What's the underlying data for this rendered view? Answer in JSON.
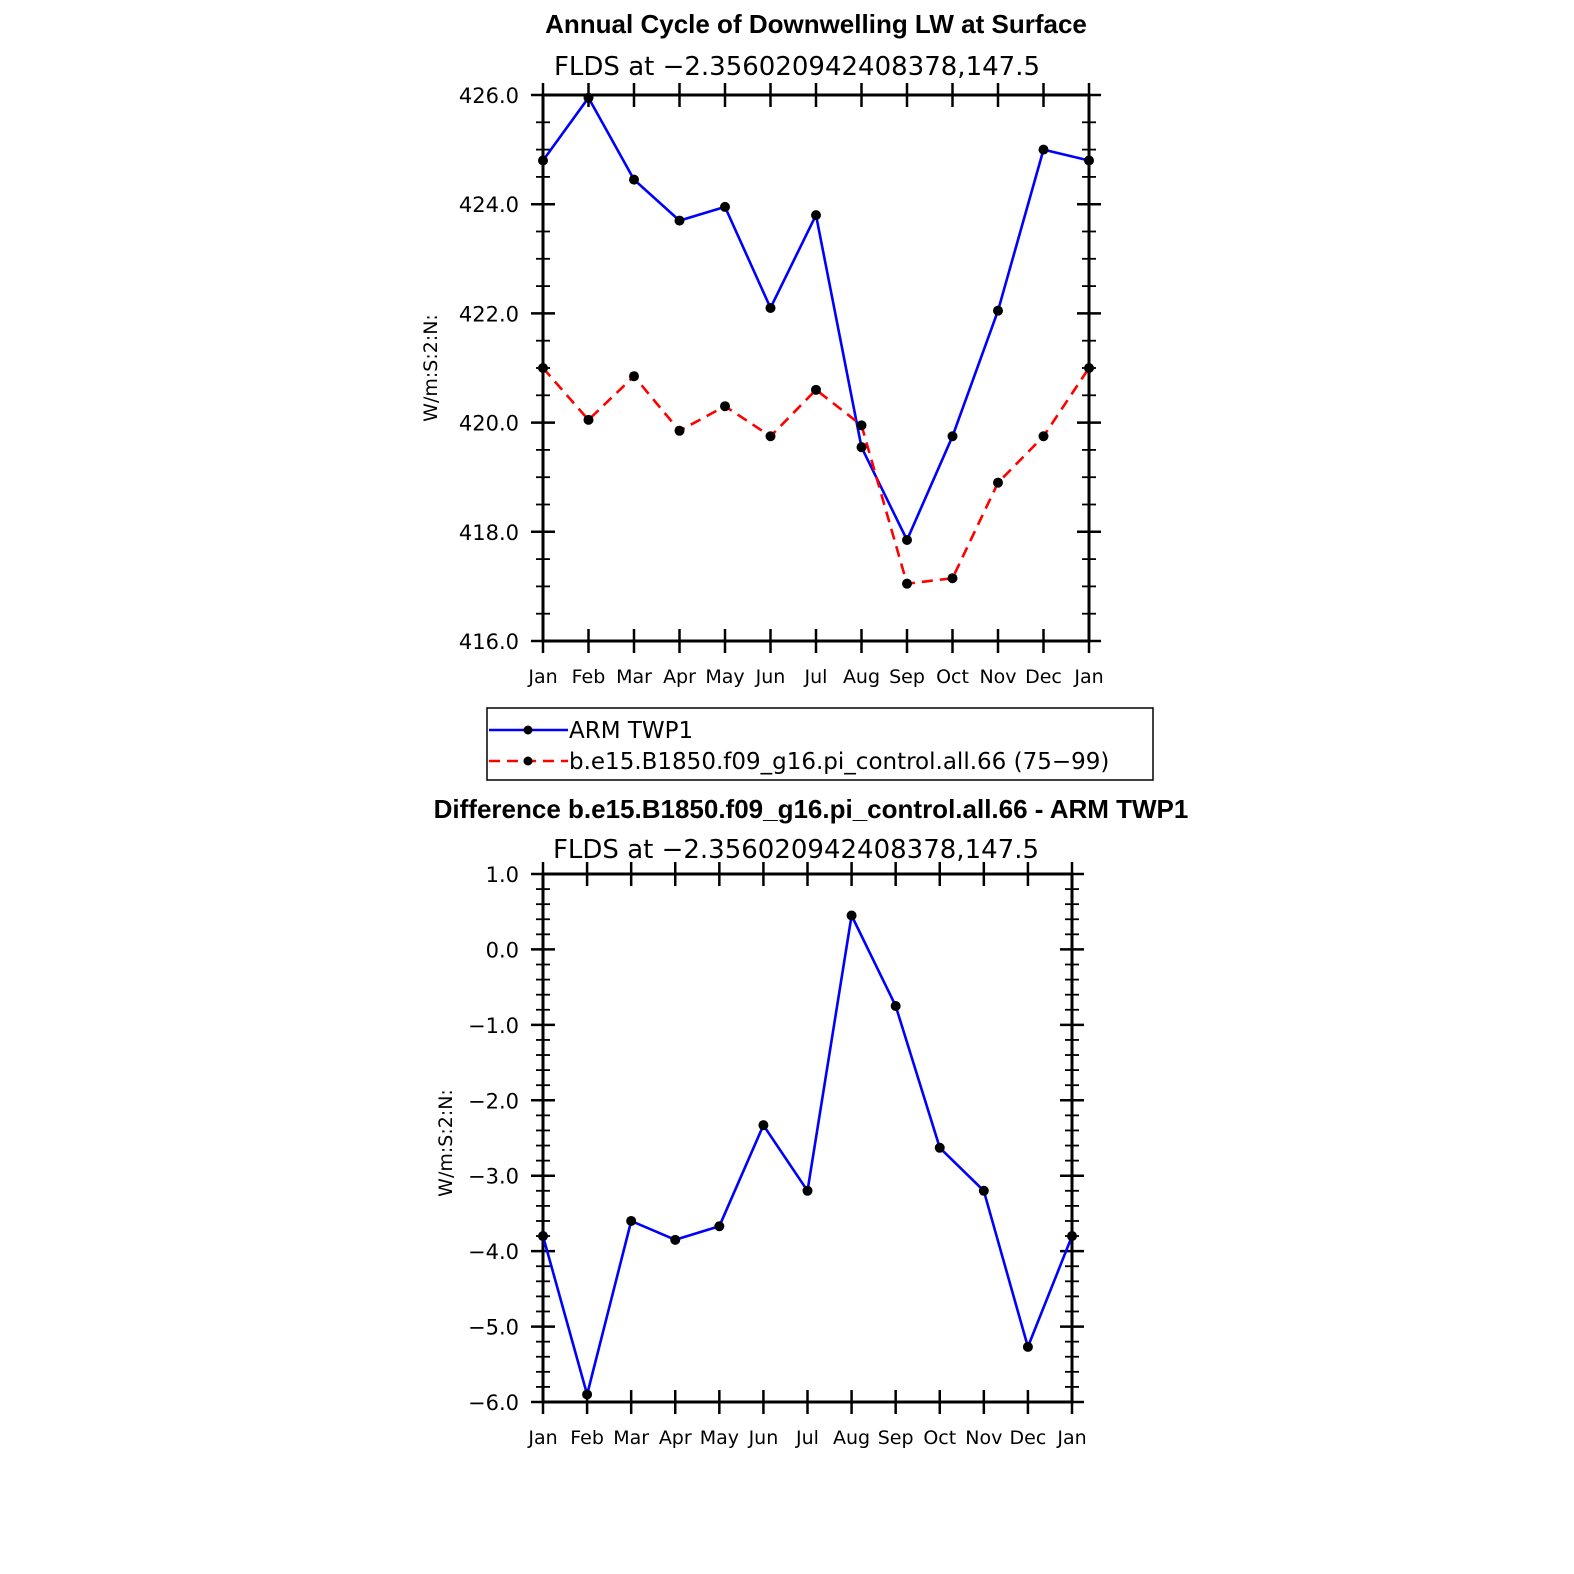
{
  "chart_data": [
    {
      "type": "line",
      "title": "Annual Cycle of Downwelling LW at Surface",
      "subtitle": "FLDS at −2.356020942408378,147.5",
      "ylabel": "W/m:S:2:N:",
      "xlabel": "",
      "categories": [
        "Jan",
        "Feb",
        "Mar",
        "Apr",
        "May",
        "Jun",
        "Jul",
        "Aug",
        "Sep",
        "Oct",
        "Nov",
        "Dec",
        "Jan"
      ],
      "ylim": [
        416.0,
        426.0
      ],
      "yticks": [
        "416.0",
        "418.0",
        "420.0",
        "422.0",
        "424.0",
        "426.0"
      ],
      "grid": false,
      "legend_position": "bottom",
      "series": [
        {
          "name": "ARM  TWP1",
          "color": "#0000ff",
          "dash": "solid",
          "values": [
            424.8,
            425.95,
            424.45,
            423.7,
            423.95,
            422.1,
            423.8,
            419.55,
            417.85,
            419.75,
            422.05,
            425.0,
            424.8
          ]
        },
        {
          "name": "b.e15.B1850.f09_g16.pi_control.all.66 (75−99)",
          "color": "#ff0000",
          "dash": "dashed",
          "values": [
            421.0,
            420.05,
            420.85,
            419.85,
            420.3,
            419.75,
            420.6,
            419.95,
            417.05,
            417.15,
            418.9,
            419.75,
            421.0
          ]
        }
      ]
    },
    {
      "type": "line",
      "title": "Difference b.e15.B1850.f09_g16.pi_control.all.66 - ARM TWP1",
      "subtitle": "FLDS at −2.356020942408378,147.5",
      "ylabel": "W/m:S:2:N:",
      "xlabel": "",
      "categories": [
        "Jan",
        "Feb",
        "Mar",
        "Apr",
        "May",
        "Jun",
        "Jul",
        "Aug",
        "Sep",
        "Oct",
        "Nov",
        "Dec",
        "Jan"
      ],
      "ylim": [
        -6.0,
        1.0
      ],
      "yticks": [
        "−6.0",
        "−5.0",
        "−4.0",
        "−3.0",
        "−2.0",
        "−1.0",
        "0.0",
        "1.0"
      ],
      "grid": false,
      "series": [
        {
          "color": "#0000ff",
          "dash": "solid",
          "values": [
            -3.8,
            -5.9,
            -3.6,
            -3.85,
            -3.67,
            -2.33,
            -3.2,
            0.45,
            -0.75,
            -2.63,
            -3.2,
            -5.27,
            -3.8
          ]
        }
      ]
    }
  ]
}
